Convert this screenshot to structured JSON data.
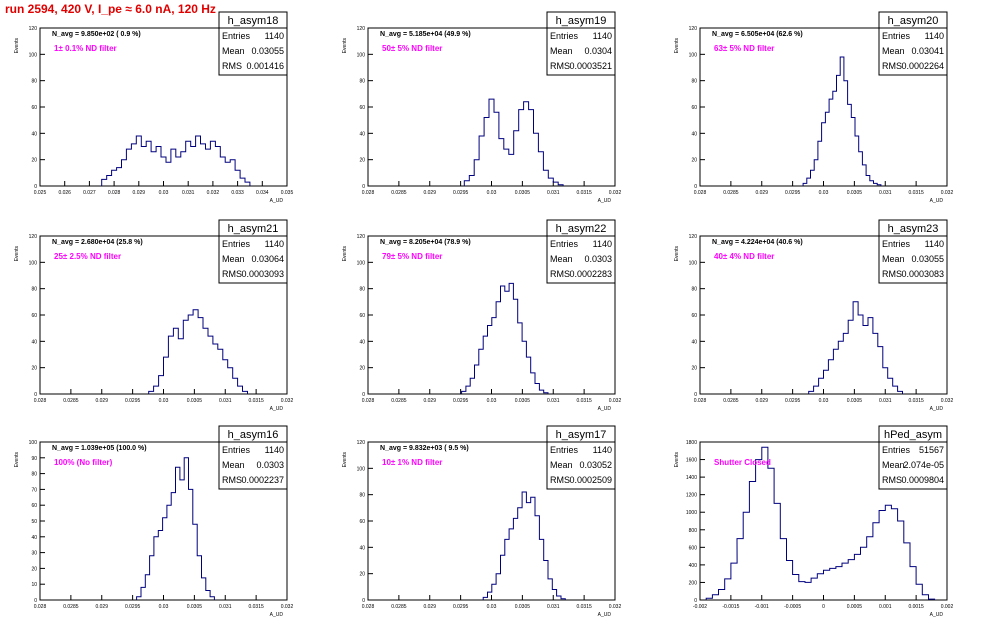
{
  "page_title": "run 2594,   420 V, I_pe ≈ 6.0 nA, 120 Hz",
  "colors": {
    "line": "#00007f",
    "note": "#ff00ff",
    "title": "#e00000",
    "frame": "#000000"
  },
  "chart_data": [
    {
      "type": "histogram",
      "title": "h_asym18",
      "stats": [
        {
          "label": "Entries",
          "value": "1140"
        },
        {
          "label": "Mean",
          "value": "0.03055"
        },
        {
          "label": "RMS",
          "value": "0.001416"
        }
      ],
      "navg": "N_avg = 9.850e+02 ( 0.9 %)",
      "note": "1± 0.1% ND filter",
      "xlabel": "A_UD",
      "ylabel": "Events",
      "xlim": [
        0.025,
        0.035
      ],
      "ylim": [
        0,
        120
      ],
      "xticks": [
        {
          "v": 0.025,
          "l": "0.025"
        },
        {
          "v": 0.026,
          "l": "0.026"
        },
        {
          "v": 0.027,
          "l": "0.027"
        },
        {
          "v": 0.028,
          "l": "0.028"
        },
        {
          "v": 0.029,
          "l": "0.029"
        },
        {
          "v": 0.03,
          "l": "0.03"
        },
        {
          "v": 0.031,
          "l": "0.031"
        },
        {
          "v": 0.032,
          "l": "0.032"
        },
        {
          "v": 0.033,
          "l": "0.033"
        },
        {
          "v": 0.034,
          "l": "0.034"
        },
        {
          "v": 0.035,
          "l": "0.035"
        }
      ],
      "yticks": [
        0,
        20,
        40,
        60,
        80,
        100,
        120
      ],
      "x": [
        0.0276,
        0.0278,
        0.028,
        0.0282,
        0.0284,
        0.0286,
        0.0288,
        0.029,
        0.0292,
        0.0294,
        0.0296,
        0.0298,
        0.03,
        0.0302,
        0.0304,
        0.0306,
        0.0308,
        0.031,
        0.0312,
        0.0314,
        0.0316,
        0.0318,
        0.032,
        0.0322,
        0.0324,
        0.0326,
        0.0328,
        0.033,
        0.0332,
        0.0334
      ],
      "values": [
        5,
        8,
        12,
        14,
        20,
        28,
        32,
        38,
        30,
        34,
        26,
        30,
        22,
        18,
        28,
        22,
        26,
        34,
        30,
        38,
        32,
        28,
        34,
        30,
        22,
        18,
        20,
        12,
        6,
        3
      ]
    },
    {
      "type": "histogram",
      "title": "h_asym19",
      "stats": [
        {
          "label": "Entries",
          "value": "1140"
        },
        {
          "label": "Mean",
          "value": "0.0304"
        },
        {
          "label": "RMS",
          "value": "0.0003521"
        }
      ],
      "navg": "N_avg = 5.185e+04 (49.9 %)",
      "note": "50± 5% ND filter",
      "xlabel": "A_UD",
      "ylabel": "Events",
      "xlim": [
        0.028,
        0.032
      ],
      "ylim": [
        0,
        120
      ],
      "xticks": [
        {
          "v": 0.028,
          "l": "0.028"
        },
        {
          "v": 0.0285,
          "l": "0.0285"
        },
        {
          "v": 0.029,
          "l": "0.029"
        },
        {
          "v": 0.0295,
          "l": "0.0295"
        },
        {
          "v": 0.03,
          "l": "0.03"
        },
        {
          "v": 0.0305,
          "l": "0.0305"
        },
        {
          "v": 0.031,
          "l": "0.031"
        },
        {
          "v": 0.0315,
          "l": "0.0315"
        },
        {
          "v": 0.032,
          "l": "0.032"
        }
      ],
      "yticks": [
        0,
        20,
        40,
        60,
        80,
        100,
        120
      ],
      "x": [
        0.0296,
        0.02968,
        0.02976,
        0.02984,
        0.02992,
        0.03,
        0.03008,
        0.03016,
        0.03024,
        0.03032,
        0.0304,
        0.03048,
        0.03056,
        0.03064,
        0.03072,
        0.0308,
        0.03088,
        0.03096,
        0.03104,
        0.03112
      ],
      "values": [
        4,
        8,
        20,
        38,
        52,
        66,
        56,
        36,
        28,
        24,
        42,
        58,
        64,
        58,
        40,
        26,
        12,
        6,
        3,
        1
      ]
    },
    {
      "type": "histogram",
      "title": "h_asym20",
      "stats": [
        {
          "label": "Entries",
          "value": "1140"
        },
        {
          "label": "Mean",
          "value": "0.03041"
        },
        {
          "label": "RMS",
          "value": "0.0002264"
        }
      ],
      "navg": "N_avg = 6.505e+04 (62.6 %)",
      "note": "63± 5% ND filter",
      "xlabel": "A_UD",
      "ylabel": "Events",
      "xlim": [
        0.028,
        0.032
      ],
      "ylim": [
        0,
        120
      ],
      "xticks": [
        {
          "v": 0.028,
          "l": "0.028"
        },
        {
          "v": 0.0285,
          "l": "0.0285"
        },
        {
          "v": 0.029,
          "l": "0.029"
        },
        {
          "v": 0.0295,
          "l": "0.0295"
        },
        {
          "v": 0.03,
          "l": "0.03"
        },
        {
          "v": 0.0305,
          "l": "0.0305"
        },
        {
          "v": 0.031,
          "l": "0.031"
        },
        {
          "v": 0.0315,
          "l": "0.0315"
        },
        {
          "v": 0.032,
          "l": "0.032"
        }
      ],
      "yticks": [
        0,
        20,
        40,
        60,
        80,
        100,
        120
      ],
      "x": [
        0.0297,
        0.02976,
        0.02982,
        0.02988,
        0.02994,
        0.03,
        0.03006,
        0.03012,
        0.03018,
        0.03024,
        0.0303,
        0.03036,
        0.03042,
        0.03048,
        0.03054,
        0.0306,
        0.03066,
        0.03072,
        0.03078,
        0.03084,
        0.0309
      ],
      "values": [
        2,
        6,
        12,
        20,
        34,
        48,
        56,
        66,
        72,
        84,
        98,
        80,
        62,
        52,
        38,
        26,
        16,
        8,
        4,
        2,
        1
      ]
    },
    {
      "type": "histogram",
      "title": "h_asym21",
      "stats": [
        {
          "label": "Entries",
          "value": "1140"
        },
        {
          "label": "Mean",
          "value": "0.03064"
        },
        {
          "label": "RMS",
          "value": "0.0003093"
        }
      ],
      "navg": "N_avg = 2.680e+04 (25.8 %)",
      "note": "25± 2.5% ND filter",
      "xlabel": "A_UD",
      "ylabel": "Events",
      "xlim": [
        0.028,
        0.032
      ],
      "ylim": [
        0,
        120
      ],
      "xticks": [
        {
          "v": 0.028,
          "l": "0.028"
        },
        {
          "v": 0.0285,
          "l": "0.0285"
        },
        {
          "v": 0.029,
          "l": "0.029"
        },
        {
          "v": 0.0295,
          "l": "0.0295"
        },
        {
          "v": 0.03,
          "l": "0.03"
        },
        {
          "v": 0.0305,
          "l": "0.0305"
        },
        {
          "v": 0.031,
          "l": "0.031"
        },
        {
          "v": 0.0315,
          "l": "0.0315"
        },
        {
          "v": 0.032,
          "l": "0.032"
        }
      ],
      "yticks": [
        0,
        20,
        40,
        60,
        80,
        100,
        120
      ],
      "x": [
        0.0298,
        0.02988,
        0.02996,
        0.03004,
        0.03012,
        0.0302,
        0.03028,
        0.03036,
        0.03044,
        0.03052,
        0.0306,
        0.03068,
        0.03076,
        0.03084,
        0.03092,
        0.031,
        0.03108,
        0.03116,
        0.03124,
        0.03132
      ],
      "values": [
        2,
        6,
        14,
        28,
        44,
        50,
        42,
        56,
        60,
        64,
        58,
        50,
        44,
        38,
        34,
        26,
        20,
        12,
        6,
        2
      ]
    },
    {
      "type": "histogram",
      "title": "h_asym22",
      "stats": [
        {
          "label": "Entries",
          "value": "1140"
        },
        {
          "label": "Mean",
          "value": "0.0303"
        },
        {
          "label": "RMS",
          "value": "0.0002283"
        }
      ],
      "navg": "N_avg = 8.205e+04 (78.9 %)",
      "note": "79± 5% ND filter",
      "xlabel": "A_UD",
      "ylabel": "Events",
      "xlim": [
        0.028,
        0.032
      ],
      "ylim": [
        0,
        120
      ],
      "xticks": [
        {
          "v": 0.028,
          "l": "0.028"
        },
        {
          "v": 0.0285,
          "l": "0.0285"
        },
        {
          "v": 0.029,
          "l": "0.029"
        },
        {
          "v": 0.0295,
          "l": "0.0295"
        },
        {
          "v": 0.03,
          "l": "0.03"
        },
        {
          "v": 0.0305,
          "l": "0.0305"
        },
        {
          "v": 0.031,
          "l": "0.031"
        },
        {
          "v": 0.0315,
          "l": "0.0315"
        },
        {
          "v": 0.032,
          "l": "0.032"
        }
      ],
      "yticks": [
        0,
        20,
        40,
        60,
        80,
        100,
        120
      ],
      "x": [
        0.02955,
        0.02962,
        0.02969,
        0.02976,
        0.02983,
        0.0299,
        0.02997,
        0.03004,
        0.03011,
        0.03018,
        0.03025,
        0.03032,
        0.03039,
        0.03046,
        0.03053,
        0.0306,
        0.03067,
        0.03074,
        0.03081,
        0.03088
      ],
      "values": [
        2,
        6,
        12,
        22,
        34,
        44,
        52,
        58,
        70,
        82,
        78,
        84,
        72,
        54,
        40,
        28,
        16,
        8,
        3,
        1
      ]
    },
    {
      "type": "histogram",
      "title": "h_asym23",
      "stats": [
        {
          "label": "Entries",
          "value": "1140"
        },
        {
          "label": "Mean",
          "value": "0.03055"
        },
        {
          "label": "RMS",
          "value": "0.0003083"
        }
      ],
      "navg": "N_avg = 4.224e+04 (40.6 %)",
      "note": "40± 4% ND filter",
      "xlabel": "A_UD",
      "ylabel": "Events",
      "xlim": [
        0.028,
        0.032
      ],
      "ylim": [
        0,
        120
      ],
      "xticks": [
        {
          "v": 0.028,
          "l": "0.028"
        },
        {
          "v": 0.0285,
          "l": "0.0285"
        },
        {
          "v": 0.029,
          "l": "0.029"
        },
        {
          "v": 0.0295,
          "l": "0.0295"
        },
        {
          "v": 0.03,
          "l": "0.03"
        },
        {
          "v": 0.0305,
          "l": "0.0305"
        },
        {
          "v": 0.031,
          "l": "0.031"
        },
        {
          "v": 0.0315,
          "l": "0.0315"
        },
        {
          "v": 0.032,
          "l": "0.032"
        }
      ],
      "yticks": [
        0,
        20,
        40,
        60,
        80,
        100,
        120
      ],
      "x": [
        0.0298,
        0.02988,
        0.02996,
        0.03004,
        0.03012,
        0.0302,
        0.03028,
        0.03036,
        0.03044,
        0.03052,
        0.0306,
        0.03068,
        0.03076,
        0.03084,
        0.03092,
        0.031,
        0.03108,
        0.03116,
        0.03124
      ],
      "values": [
        2,
        6,
        12,
        18,
        26,
        34,
        40,
        46,
        56,
        70,
        60,
        52,
        58,
        46,
        36,
        20,
        12,
        6,
        2
      ]
    },
    {
      "type": "histogram",
      "title": "h_asym16",
      "stats": [
        {
          "label": "Entries",
          "value": "1140"
        },
        {
          "label": "Mean",
          "value": "0.0303"
        },
        {
          "label": "RMS",
          "value": "0.0002237"
        }
      ],
      "navg": "N_avg = 1.039e+05 (100.0 %)",
      "note": "100% (No filter)",
      "xlabel": "A_UD",
      "ylabel": "Events",
      "xlim": [
        0.028,
        0.032
      ],
      "ylim": [
        0,
        100
      ],
      "xticks": [
        {
          "v": 0.028,
          "l": "0.028"
        },
        {
          "v": 0.0285,
          "l": "0.0285"
        },
        {
          "v": 0.029,
          "l": "0.029"
        },
        {
          "v": 0.0295,
          "l": "0.0295"
        },
        {
          "v": 0.03,
          "l": "0.03"
        },
        {
          "v": 0.0305,
          "l": "0.0305"
        },
        {
          "v": 0.031,
          "l": "0.031"
        },
        {
          "v": 0.0315,
          "l": "0.0315"
        },
        {
          "v": 0.032,
          "l": "0.032"
        }
      ],
      "yticks": [
        0,
        10,
        20,
        30,
        40,
        50,
        60,
        70,
        80,
        90,
        100
      ],
      "x": [
        0.0296,
        0.02967,
        0.02974,
        0.02981,
        0.02988,
        0.02995,
        0.03002,
        0.03009,
        0.03016,
        0.03023,
        0.0303,
        0.03037,
        0.03044,
        0.03051,
        0.03058,
        0.03065,
        0.03072,
        0.03079
      ],
      "values": [
        2,
        8,
        16,
        28,
        40,
        44,
        52,
        60,
        68,
        84,
        76,
        90,
        70,
        48,
        28,
        14,
        6,
        2
      ]
    },
    {
      "type": "histogram",
      "title": "h_asym17",
      "stats": [
        {
          "label": "Entries",
          "value": "1140"
        },
        {
          "label": "Mean",
          "value": "0.03052"
        },
        {
          "label": "RMS",
          "value": "0.0002509"
        }
      ],
      "navg": "N_avg = 9.832e+03 ( 9.5 %)",
      "note": "10± 1% ND filter",
      "xlabel": "A_UD",
      "ylabel": "Events",
      "xlim": [
        0.028,
        0.032
      ],
      "ylim": [
        0,
        120
      ],
      "xticks": [
        {
          "v": 0.028,
          "l": "0.028"
        },
        {
          "v": 0.0285,
          "l": "0.0285"
        },
        {
          "v": 0.029,
          "l": "0.029"
        },
        {
          "v": 0.0295,
          "l": "0.0295"
        },
        {
          "v": 0.03,
          "l": "0.03"
        },
        {
          "v": 0.0305,
          "l": "0.0305"
        },
        {
          "v": 0.031,
          "l": "0.031"
        },
        {
          "v": 0.0315,
          "l": "0.0315"
        },
        {
          "v": 0.032,
          "l": "0.032"
        }
      ],
      "yticks": [
        0,
        20,
        40,
        60,
        80,
        100,
        120
      ],
      "x": [
        0.0299,
        0.02997,
        0.03004,
        0.03011,
        0.03018,
        0.03025,
        0.03032,
        0.03039,
        0.03046,
        0.03053,
        0.0306,
        0.03067,
        0.03074,
        0.03081,
        0.03088,
        0.03095,
        0.03102,
        0.03109,
        0.03116
      ],
      "values": [
        2,
        6,
        12,
        20,
        34,
        46,
        54,
        62,
        70,
        82,
        74,
        78,
        64,
        46,
        30,
        16,
        8,
        3,
        1
      ]
    },
    {
      "type": "histogram",
      "title": "hPed_asym",
      "stats": [
        {
          "label": "Entries",
          "value": "51567"
        },
        {
          "label": "Mean",
          "value": "2.074e-05"
        },
        {
          "label": "RMS",
          "value": "0.0009804"
        }
      ],
      "navg": "",
      "note": "Shutter Closed",
      "xlabel": "A_UD",
      "ylabel": "Events",
      "xlim": [
        -0.002,
        0.002
      ],
      "ylim": [
        0,
        1800
      ],
      "xticks": [
        {
          "v": -0.002,
          "l": "-0.002"
        },
        {
          "v": -0.0015,
          "l": "-0.0015"
        },
        {
          "v": -0.001,
          "l": "-0.001"
        },
        {
          "v": -0.0005,
          "l": "-0.0005"
        },
        {
          "v": 0,
          "l": "0"
        },
        {
          "v": 0.0005,
          "l": "0.0005"
        },
        {
          "v": 0.001,
          "l": "0.001"
        },
        {
          "v": 0.0015,
          "l": "0.0015"
        },
        {
          "v": 0.002,
          "l": "0.002"
        }
      ],
      "yticks": [
        0,
        200,
        400,
        600,
        800,
        1000,
        1200,
        1400,
        1600,
        1800
      ],
      "x": [
        -0.00185,
        -0.00175,
        -0.00165,
        -0.00155,
        -0.00145,
        -0.00135,
        -0.00125,
        -0.00115,
        -0.00105,
        -0.00095,
        -0.00085,
        -0.00075,
        -0.00065,
        -0.00055,
        -0.00045,
        -0.00035,
        -0.00025,
        -0.00015,
        -5e-05,
        5e-05,
        0.00015,
        0.00025,
        0.00035,
        0.00045,
        0.00055,
        0.00065,
        0.00075,
        0.00085,
        0.00095,
        0.00105,
        0.00115,
        0.00125,
        0.00135,
        0.00145,
        0.00155,
        0.00165,
        0.00175
      ],
      "values": [
        20,
        60,
        120,
        240,
        420,
        700,
        1000,
        1350,
        1600,
        1740,
        1500,
        1100,
        700,
        450,
        290,
        210,
        200,
        250,
        300,
        340,
        360,
        380,
        420,
        460,
        520,
        600,
        720,
        880,
        1020,
        1080,
        1040,
        900,
        650,
        380,
        180,
        60,
        10
      ]
    }
  ]
}
